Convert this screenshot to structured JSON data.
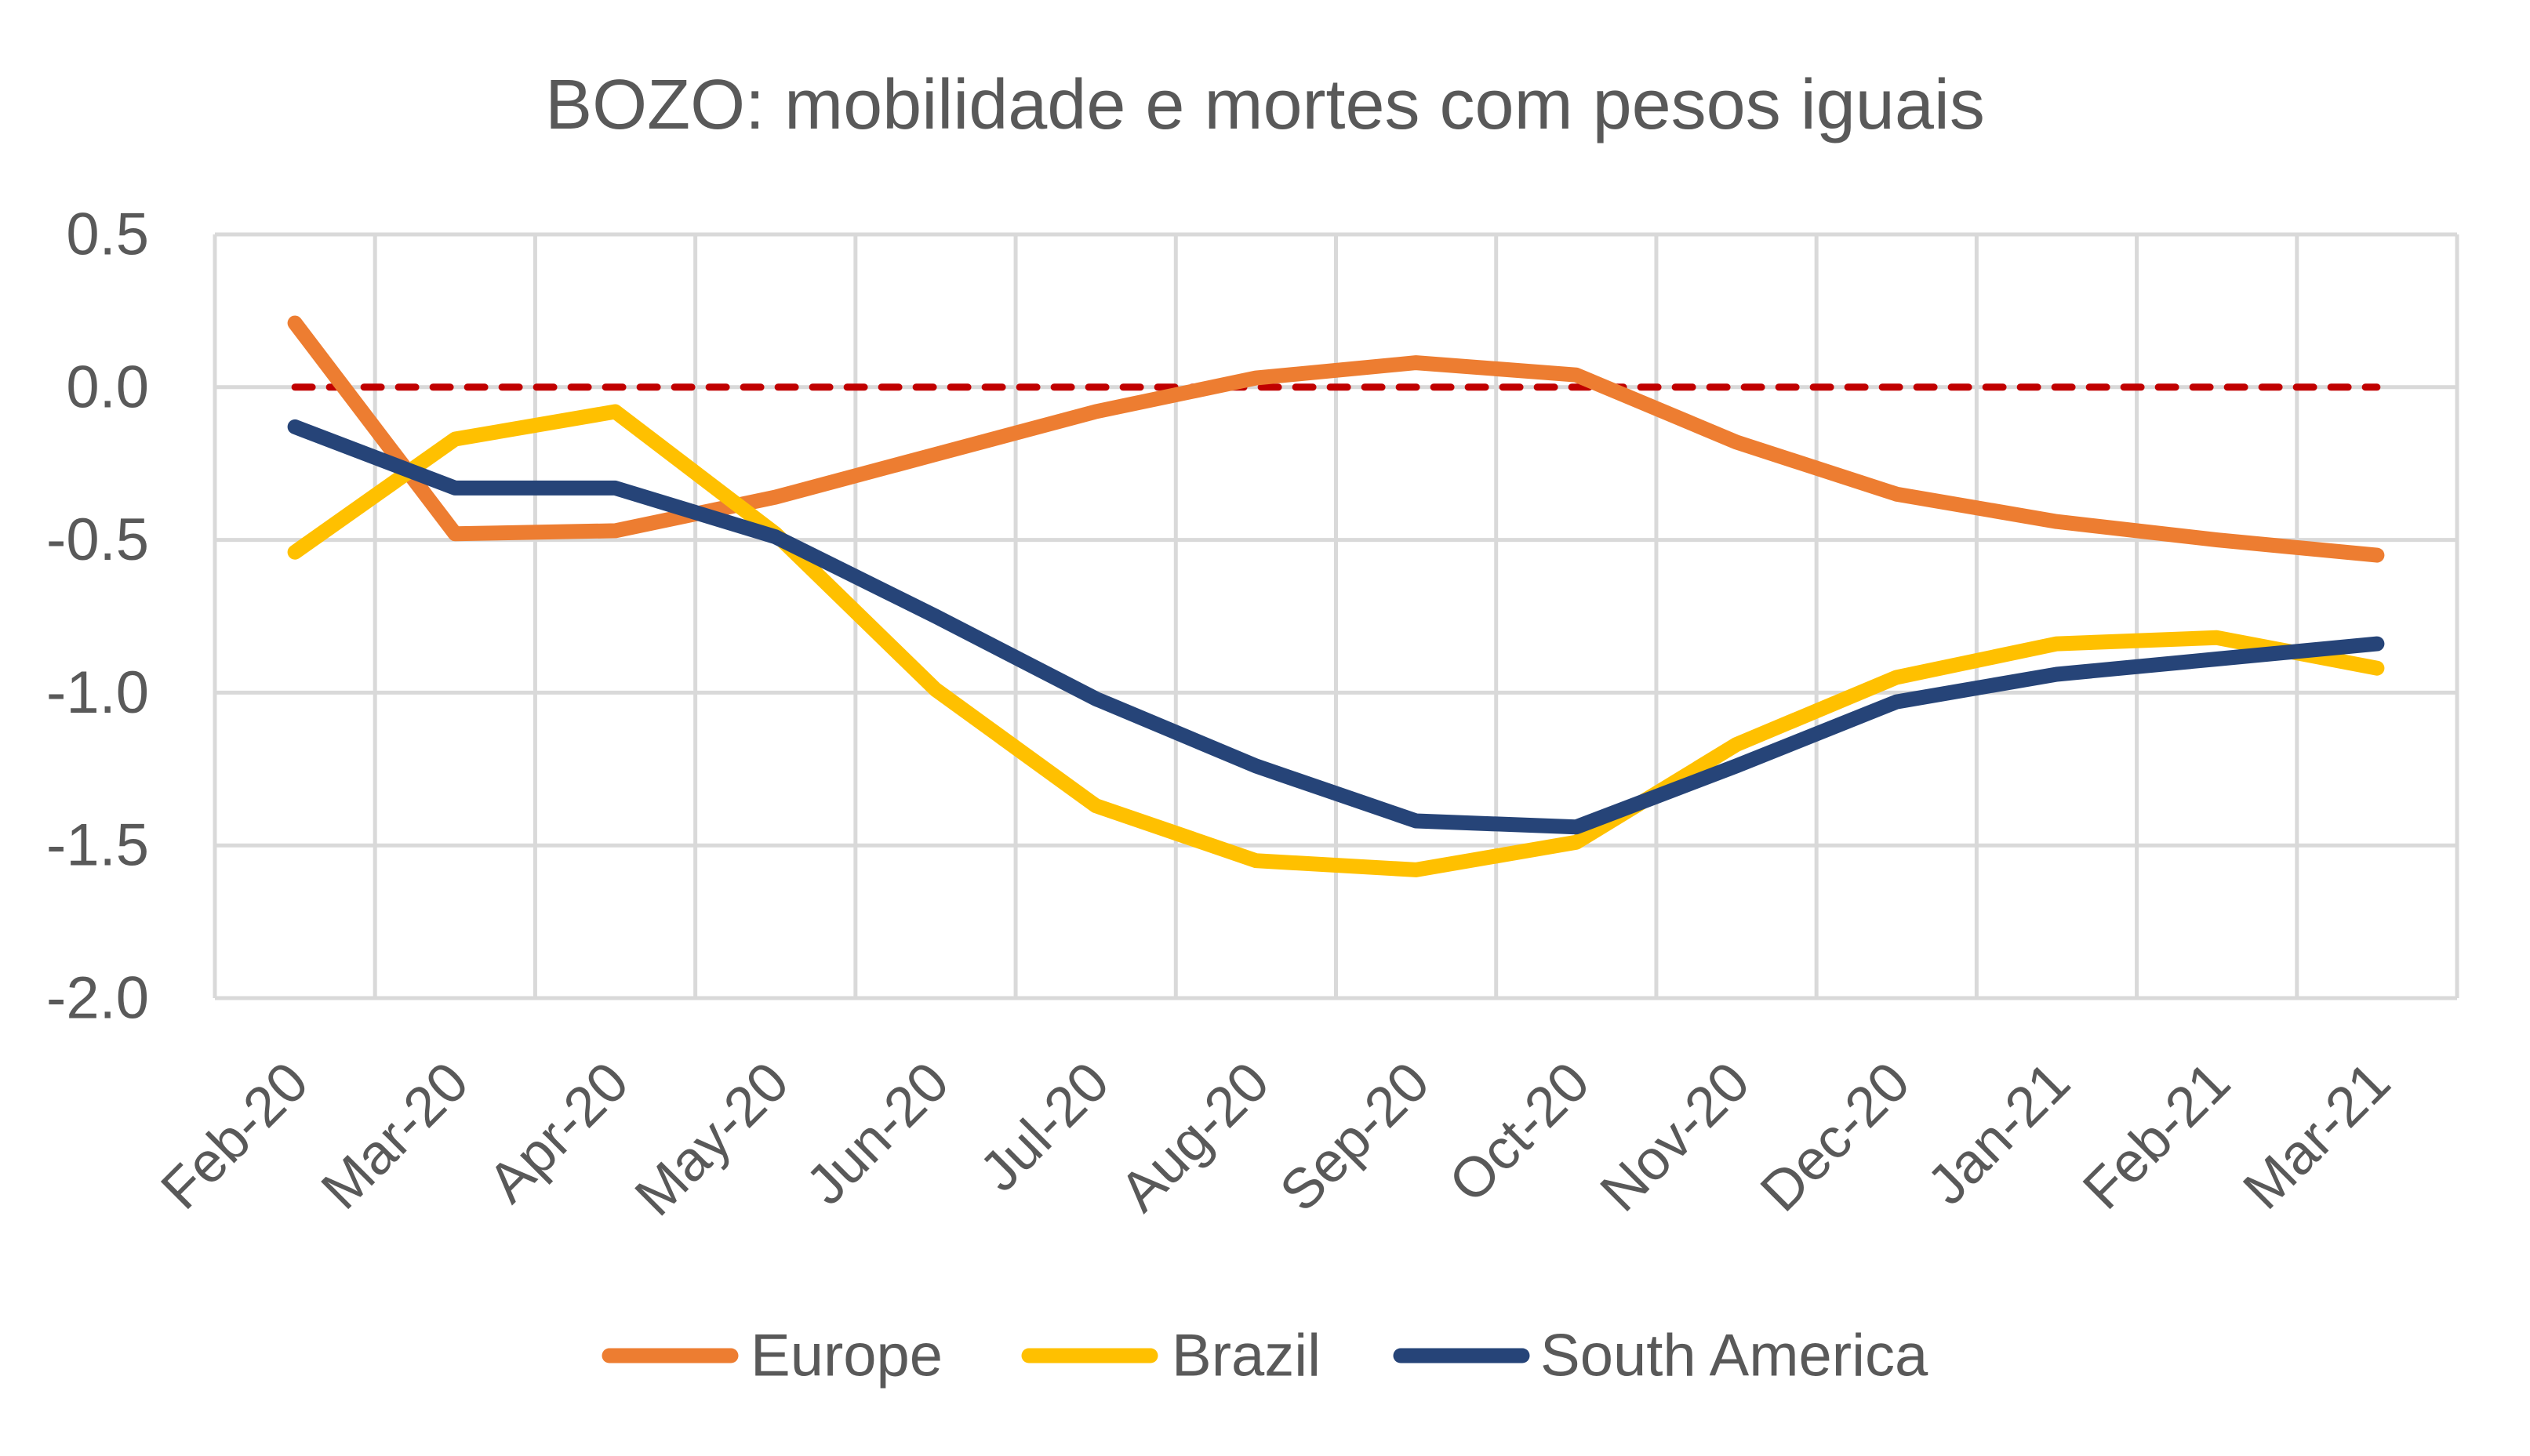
{
  "chart_data": {
    "type": "line",
    "title": "BOZO: mobilidade e mortes com pesos iguais",
    "xlabel": "",
    "ylabel": "",
    "categories": [
      "Feb-20",
      "Mar-20",
      "Apr-20",
      "May-20",
      "Jun-20",
      "Jul-20",
      "Aug-20",
      "Sep-20",
      "Oct-20",
      "Nov-20",
      "Dec-20",
      "Jan-21",
      "Feb-21",
      "Mar-21"
    ],
    "ylim": [
      -2.0,
      0.5
    ],
    "yticks": [
      0.5,
      0.0,
      -0.5,
      -1.0,
      -1.5,
      -2.0
    ],
    "ytick_labels": [
      "0.5",
      "0.0",
      "-0.5",
      "-1.0",
      "-1.5",
      "-2.0"
    ],
    "grid": true,
    "legend_position": "bottom",
    "series": [
      {
        "name": "Europe",
        "color": "#ED7D31",
        "values": [
          0.21,
          -0.48,
          -0.47,
          -0.36,
          -0.22,
          -0.08,
          0.03,
          0.08,
          0.04,
          -0.18,
          -0.35,
          -0.44,
          -0.5,
          -0.55
        ]
      },
      {
        "name": "Brazil",
        "color": "#FFC000",
        "values": [
          -0.54,
          -0.17,
          -0.08,
          -0.48,
          -0.99,
          -1.37,
          -1.55,
          -1.58,
          -1.49,
          -1.17,
          -0.95,
          -0.84,
          -0.82,
          -0.92
        ]
      },
      {
        "name": "South America",
        "color": "#264478",
        "values": [
          -0.13,
          -0.33,
          -0.33,
          -0.49,
          -0.75,
          -1.02,
          -1.24,
          -1.42,
          -1.44,
          -1.24,
          -1.03,
          -0.94,
          -0.89,
          -0.84
        ]
      }
    ],
    "reference_line": {
      "value": 0.0,
      "color": "#C00000",
      "style": "dashed"
    }
  },
  "colors": {
    "text": "#595959",
    "grid": "#D9D9D9",
    "background": "#FFFFFF"
  }
}
